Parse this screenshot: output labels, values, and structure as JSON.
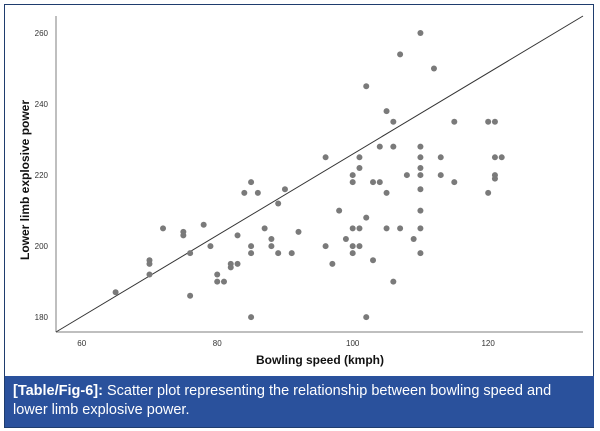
{
  "caption": {
    "label": "[Table/Fig-6]:",
    "text": "Scatter plot representing the relationship between bowling speed and lower limb explosive power."
  },
  "colors": {
    "point": "#7a7a7a",
    "line": "#333333",
    "axis": "#aaaaaa",
    "caption_bg": "#2a519c",
    "frame": "#1f3d6e"
  },
  "chart_data": {
    "type": "scatter",
    "title": "",
    "xlabel": "Bowling speed (kmph)",
    "ylabel": "Lower limb explosive power",
    "xlim": [
      56.2,
      134
    ],
    "ylim": [
      175.8,
      264.8
    ],
    "xticks": [
      60,
      80,
      100,
      120
    ],
    "yticks": [
      180,
      200,
      220,
      240,
      260
    ],
    "grid": false,
    "legend": "none",
    "fit_line": {
      "x": [
        56.2,
        134
      ],
      "y": [
        175.8,
        264.8
      ]
    },
    "points": [
      [
        65,
        187
      ],
      [
        70,
        196
      ],
      [
        70,
        195
      ],
      [
        70,
        192
      ],
      [
        72,
        205
      ],
      [
        75,
        204
      ],
      [
        75,
        203
      ],
      [
        76,
        198
      ],
      [
        76,
        186
      ],
      [
        78,
        206
      ],
      [
        79,
        200
      ],
      [
        80,
        192
      ],
      [
        80,
        190
      ],
      [
        81,
        190
      ],
      [
        82,
        195
      ],
      [
        82,
        194
      ],
      [
        83,
        203
      ],
      [
        83,
        195
      ],
      [
        84,
        215
      ],
      [
        85,
        218
      ],
      [
        85,
        200
      ],
      [
        85,
        198
      ],
      [
        85,
        180
      ],
      [
        86,
        215
      ],
      [
        87,
        205
      ],
      [
        88,
        202
      ],
      [
        88,
        200
      ],
      [
        89,
        212
      ],
      [
        89,
        198
      ],
      [
        90,
        216
      ],
      [
        91,
        198
      ],
      [
        92,
        204
      ],
      [
        96,
        225
      ],
      [
        96,
        200
      ],
      [
        97,
        195
      ],
      [
        98,
        210
      ],
      [
        99,
        202
      ],
      [
        100,
        220
      ],
      [
        100,
        218
      ],
      [
        100,
        205
      ],
      [
        100,
        200
      ],
      [
        100,
        198
      ],
      [
        101,
        225
      ],
      [
        101,
        222
      ],
      [
        101,
        205
      ],
      [
        101,
        200
      ],
      [
        102,
        245
      ],
      [
        102,
        208
      ],
      [
        102,
        180
      ],
      [
        103,
        218
      ],
      [
        103,
        196
      ],
      [
        104,
        218
      ],
      [
        104,
        228
      ],
      [
        105,
        238
      ],
      [
        105,
        215
      ],
      [
        105,
        205
      ],
      [
        106,
        235
      ],
      [
        106,
        228
      ],
      [
        106,
        190
      ],
      [
        107,
        254
      ],
      [
        107,
        205
      ],
      [
        108,
        220
      ],
      [
        109,
        202
      ],
      [
        110,
        260
      ],
      [
        110,
        228
      ],
      [
        110,
        225
      ],
      [
        110,
        222
      ],
      [
        110,
        220
      ],
      [
        110,
        216
      ],
      [
        110,
        210
      ],
      [
        110,
        205
      ],
      [
        110,
        198
      ],
      [
        112,
        250
      ],
      [
        113,
        225
      ],
      [
        113,
        220
      ],
      [
        115,
        235
      ],
      [
        115,
        218
      ],
      [
        120,
        235
      ],
      [
        120,
        215
      ],
      [
        121,
        235
      ],
      [
        121,
        225
      ],
      [
        121,
        220
      ],
      [
        121,
        219
      ],
      [
        122,
        225
      ]
    ]
  }
}
